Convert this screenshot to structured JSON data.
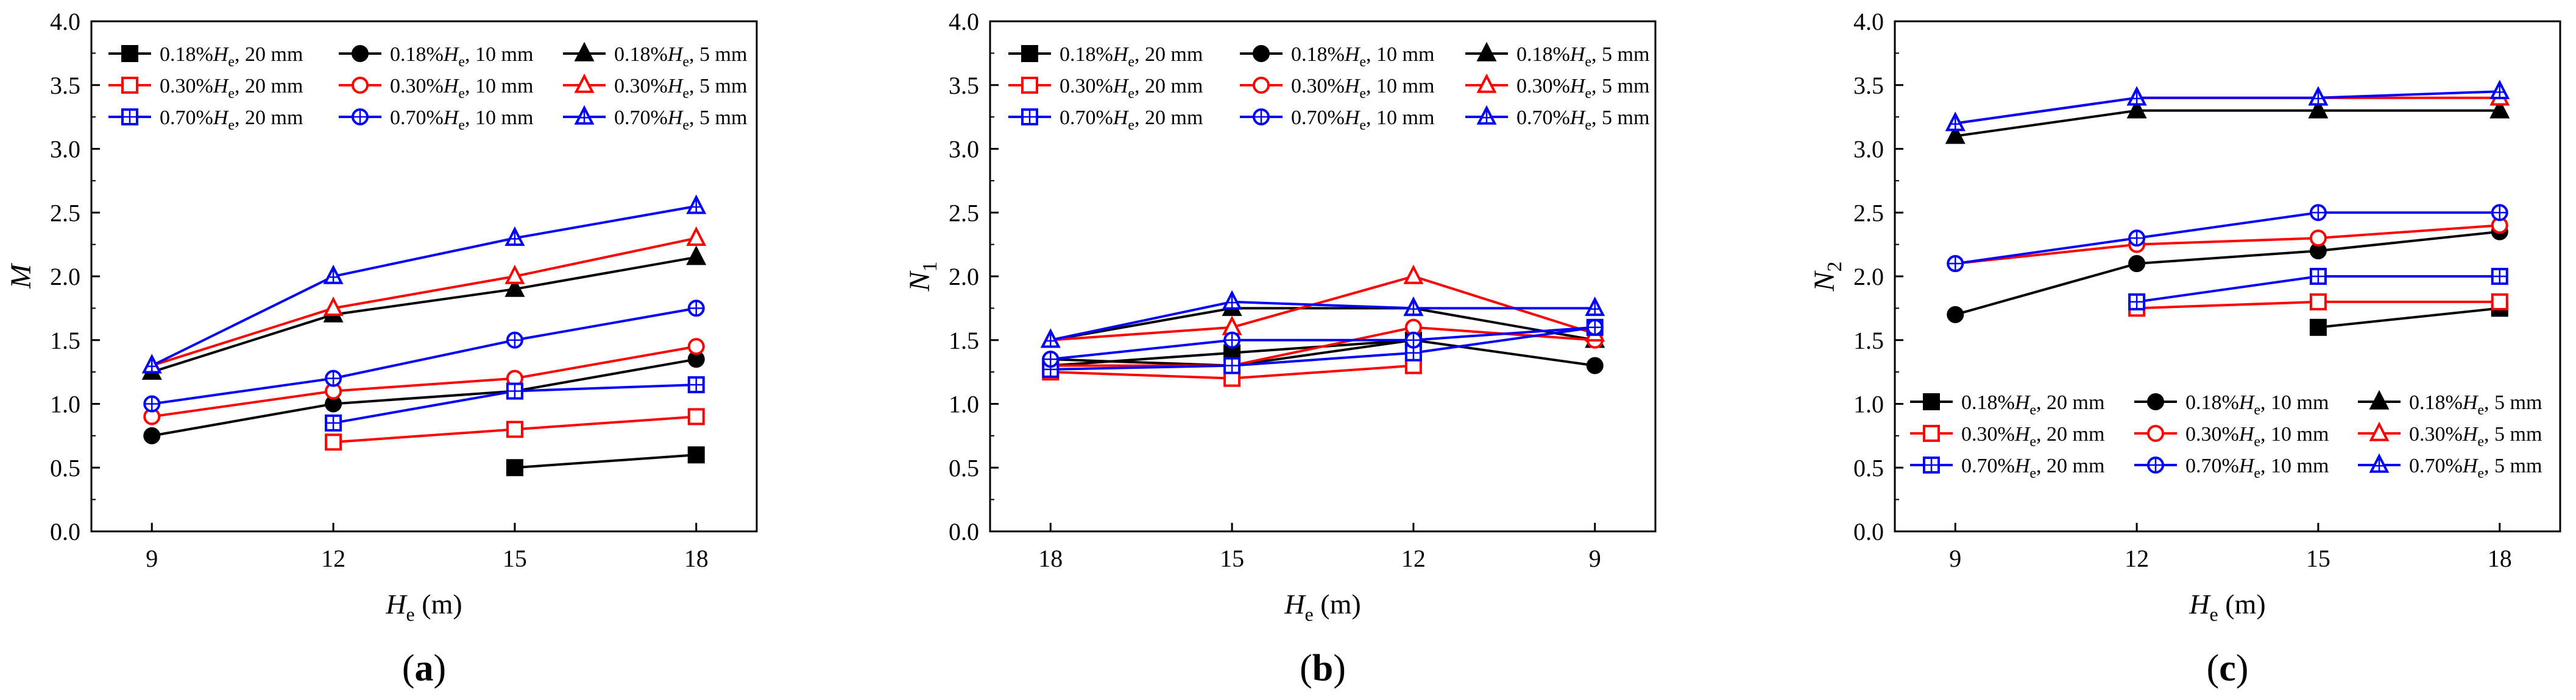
{
  "chart_data": [
    {
      "panel_label": "(a)",
      "type": "line",
      "ylabel": "M",
      "xlabel_main": "H",
      "xlabel_sub": "e",
      "xlabel_unit": " (m)",
      "x_ticks": [
        9,
        12,
        15,
        18
      ],
      "x_tick_labels": [
        "9",
        "12",
        "15",
        "18"
      ],
      "xlim": [
        8,
        19
      ],
      "x_reversed": false,
      "ylim": [
        0,
        4
      ],
      "y_ticks": [
        0,
        0.5,
        1,
        1.5,
        2,
        2.5,
        3,
        3.5,
        4
      ],
      "y_tick_labels": [
        "0.0",
        "0.5",
        "1.0",
        "1.5",
        "2.0",
        "2.5",
        "3.0",
        "3.5",
        "4.0"
      ],
      "legend_position": "top",
      "series": [
        {
          "name": "0.18%He, 20 mm",
          "x": [
            15,
            18
          ],
          "values": [
            0.5,
            0.6
          ]
        },
        {
          "name": "0.18%He, 10 mm",
          "x": [
            9,
            12,
            15,
            18
          ],
          "values": [
            0.75,
            1.0,
            1.1,
            1.35
          ]
        },
        {
          "name": "0.18%He, 5 mm",
          "x": [
            9,
            12,
            15,
            18
          ],
          "values": [
            1.25,
            1.7,
            1.9,
            2.15
          ]
        },
        {
          "name": "0.30%He, 20 mm",
          "x": [
            12,
            15,
            18
          ],
          "values": [
            0.7,
            0.8,
            0.9
          ]
        },
        {
          "name": "0.30%He, 10 mm",
          "x": [
            9,
            12,
            15,
            18
          ],
          "values": [
            0.9,
            1.1,
            1.2,
            1.45
          ]
        },
        {
          "name": "0.30%He, 5 mm",
          "x": [
            9,
            12,
            15,
            18
          ],
          "values": [
            1.3,
            1.75,
            2.0,
            2.3
          ]
        },
        {
          "name": "0.70%He, 20 mm",
          "x": [
            12,
            15,
            18
          ],
          "values": [
            0.85,
            1.1,
            1.15
          ]
        },
        {
          "name": "0.70%He, 10 mm",
          "x": [
            9,
            12,
            15,
            18
          ],
          "values": [
            1.0,
            1.2,
            1.5,
            1.75
          ]
        },
        {
          "name": "0.70%He, 5 mm",
          "x": [
            9,
            12,
            15,
            18
          ],
          "values": [
            1.3,
            2.0,
            2.3,
            2.55
          ]
        }
      ]
    },
    {
      "panel_label": "(b)",
      "type": "line",
      "ylabel": "N",
      "ylabel_sub": "1",
      "xlabel_main": "H",
      "xlabel_sub": "e",
      "xlabel_unit": " (m)",
      "x_ticks": [
        18,
        15,
        12,
        9
      ],
      "x_tick_labels": [
        "18",
        "15",
        "12",
        "9"
      ],
      "xlim": [
        19,
        8
      ],
      "x_reversed": true,
      "ylim": [
        0,
        4
      ],
      "y_ticks": [
        0,
        0.5,
        1,
        1.5,
        2,
        2.5,
        3,
        3.5,
        4
      ],
      "y_tick_labels": [
        "0.0",
        "0.5",
        "1.0",
        "1.5",
        "2.0",
        "2.5",
        "3.0",
        "3.5",
        "4.0"
      ],
      "legend_position": "top",
      "series": [
        {
          "name": "0.18%He, 20 mm",
          "x": [
            18,
            15,
            12
          ],
          "values": [
            1.3,
            1.4,
            1.5
          ]
        },
        {
          "name": "0.18%He, 10 mm",
          "x": [
            18,
            15,
            12,
            9
          ],
          "values": [
            1.35,
            1.3,
            1.5,
            1.3
          ]
        },
        {
          "name": "0.18%He, 5 mm",
          "x": [
            18,
            15,
            12,
            9
          ],
          "values": [
            1.5,
            1.75,
            1.75,
            1.5
          ]
        },
        {
          "name": "0.30%He, 20 mm",
          "x": [
            18,
            15,
            12
          ],
          "values": [
            1.25,
            1.2,
            1.3
          ]
        },
        {
          "name": "0.30%He, 10 mm",
          "x": [
            18,
            15,
            12,
            9
          ],
          "values": [
            1.3,
            1.3,
            1.6,
            1.5
          ]
        },
        {
          "name": "0.30%He, 5 mm",
          "x": [
            18,
            15,
            12,
            9
          ],
          "values": [
            1.5,
            1.6,
            2.0,
            1.55
          ]
        },
        {
          "name": "0.70%He, 20 mm",
          "x": [
            18,
            15,
            12,
            9
          ],
          "values": [
            1.27,
            1.3,
            1.4,
            1.6
          ]
        },
        {
          "name": "0.70%He, 10 mm",
          "x": [
            18,
            15,
            12,
            9
          ],
          "values": [
            1.35,
            1.5,
            1.5,
            1.6
          ]
        },
        {
          "name": "0.70%He, 5 mm",
          "x": [
            18,
            15,
            12,
            9
          ],
          "values": [
            1.5,
            1.8,
            1.75,
            1.75
          ]
        }
      ]
    },
    {
      "panel_label": "(c)",
      "type": "line",
      "ylabel": "N",
      "ylabel_sub": "2",
      "xlabel_main": "H",
      "xlabel_sub": "e",
      "xlabel_unit": " (m)",
      "x_ticks": [
        9,
        12,
        15,
        18
      ],
      "x_tick_labels": [
        "9",
        "12",
        "15",
        "18"
      ],
      "xlim": [
        8,
        19
      ],
      "x_reversed": false,
      "ylim": [
        0,
        4
      ],
      "y_ticks": [
        0,
        0.5,
        1,
        1.5,
        2,
        2.5,
        3,
        3.5,
        4
      ],
      "y_tick_labels": [
        "0.0",
        "0.5",
        "1.0",
        "1.5",
        "2.0",
        "2.5",
        "3.0",
        "3.5",
        "4.0"
      ],
      "legend_position": "bottom",
      "series": [
        {
          "name": "0.18%He, 20 mm",
          "x": [
            15,
            18
          ],
          "values": [
            1.6,
            1.75
          ]
        },
        {
          "name": "0.18%He, 10 mm",
          "x": [
            9,
            12,
            15,
            18
          ],
          "values": [
            1.7,
            2.1,
            2.2,
            2.35
          ]
        },
        {
          "name": "0.18%He, 5 mm",
          "x": [
            9,
            12,
            15,
            18
          ],
          "values": [
            3.1,
            3.3,
            3.3,
            3.3
          ]
        },
        {
          "name": "0.30%He, 20 mm",
          "x": [
            12,
            15,
            18
          ],
          "values": [
            1.75,
            1.8,
            1.8
          ]
        },
        {
          "name": "0.30%He, 10 mm",
          "x": [
            9,
            12,
            15,
            18
          ],
          "values": [
            2.1,
            2.25,
            2.3,
            2.4
          ]
        },
        {
          "name": "0.30%He, 5 mm",
          "x": [
            9,
            12,
            15,
            18
          ],
          "values": [
            3.2,
            3.4,
            3.4,
            3.4
          ]
        },
        {
          "name": "0.70%He, 20 mm",
          "x": [
            12,
            15,
            18
          ],
          "values": [
            1.8,
            2.0,
            2.0
          ]
        },
        {
          "name": "0.70%He, 10 mm",
          "x": [
            9,
            12,
            15,
            18
          ],
          "values": [
            2.1,
            2.3,
            2.5,
            2.5
          ]
        },
        {
          "name": "0.70%He, 5 mm",
          "x": [
            9,
            12,
            15,
            18
          ],
          "values": [
            3.2,
            3.4,
            3.4,
            3.45
          ]
        }
      ]
    }
  ],
  "legend_entries": [
    {
      "pre": "0.18%",
      "var": "H",
      "sub": "e",
      "post": ", 20 mm",
      "color": "#000000",
      "marker": "square-filled"
    },
    {
      "pre": "0.18%",
      "var": "H",
      "sub": "e",
      "post": ", 10 mm",
      "color": "#000000",
      "marker": "circle-filled"
    },
    {
      "pre": "0.18%",
      "var": "H",
      "sub": "e",
      "post": ", 5 mm",
      "color": "#000000",
      "marker": "triangle-filled"
    },
    {
      "pre": "0.30%",
      "var": "H",
      "sub": "e",
      "post": ", 20 mm",
      "color": "#ff0000",
      "marker": "square-open"
    },
    {
      "pre": "0.30%",
      "var": "H",
      "sub": "e",
      "post": ", 10 mm",
      "color": "#ff0000",
      "marker": "circle-open"
    },
    {
      "pre": "0.30%",
      "var": "H",
      "sub": "e",
      "post": ", 5 mm",
      "color": "#ff0000",
      "marker": "triangle-open"
    },
    {
      "pre": "0.70%",
      "var": "H",
      "sub": "e",
      "post": ", 20 mm",
      "color": "#0000ff",
      "marker": "square-cross"
    },
    {
      "pre": "0.70%",
      "var": "H",
      "sub": "e",
      "post": ", 10 mm",
      "color": "#0000ff",
      "marker": "circle-cross"
    },
    {
      "pre": "0.70%",
      "var": "H",
      "sub": "e",
      "post": ", 5 mm",
      "color": "#0000ff",
      "marker": "triangle-cross"
    }
  ]
}
